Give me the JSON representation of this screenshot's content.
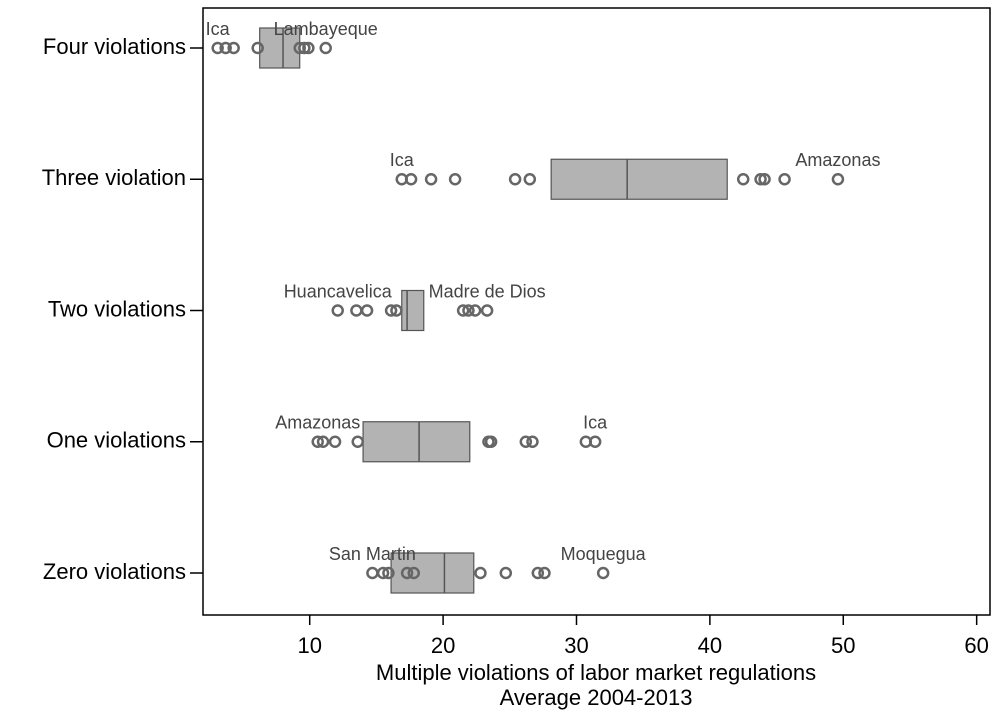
{
  "chart_data": {
    "type": "boxplot",
    "orientation": "horizontal",
    "xlabel": [
      "Multiple violations of labor market regulations",
      "Average 2004-2013"
    ],
    "xlim": [
      2,
      61
    ],
    "xticks": [
      10,
      20,
      30,
      40,
      50,
      60
    ],
    "box_color": "#b3b3b3",
    "outline_color": "#555555",
    "point_color": "#666666",
    "boxes": [
      {
        "category": "Four violations",
        "q1": 6.25,
        "median": 8,
        "q3": 9.25,
        "points": [
          3.1,
          3.7,
          4.3,
          6.1,
          9.25,
          9.6,
          9.9,
          11.2
        ],
        "min_label": "Ica",
        "max_label": "Lambayeque"
      },
      {
        "category": "Three violation",
        "q1": 28.1,
        "median": 33.8,
        "q3": 41.3,
        "points": [
          16.9,
          17.6,
          19.1,
          20.9,
          25.4,
          26.5,
          42.5,
          43.8,
          44.1,
          45.6,
          49.6
        ],
        "min_label": "Ica",
        "max_label": "Amazonas"
      },
      {
        "category": "Two violations",
        "q1": 16.9,
        "median": 17.3,
        "q3": 18.55,
        "points": [
          12.1,
          13.5,
          14.3,
          16.1,
          16.5,
          21.5,
          21.9,
          22.4,
          23.3
        ],
        "min_label": "Huancavelica",
        "max_label": "Madre de Dios"
      },
      {
        "category": "One violations",
        "q1": 14.0,
        "median": 18.2,
        "q3": 22.0,
        "points": [
          10.6,
          11.0,
          11.9,
          13.6,
          23.4,
          23.6,
          26.2,
          26.7,
          30.7,
          31.4
        ],
        "min_label": "Amazonas",
        "max_label": "Ica"
      },
      {
        "category": "Zero violations",
        "q1": 16.1,
        "median": 20.1,
        "q3": 22.3,
        "points": [
          14.7,
          15.5,
          15.9,
          17.3,
          17.8,
          22.8,
          24.7,
          27.1,
          27.6,
          32.0
        ],
        "min_label": "San Martin",
        "max_label": "Moquegua"
      }
    ]
  }
}
